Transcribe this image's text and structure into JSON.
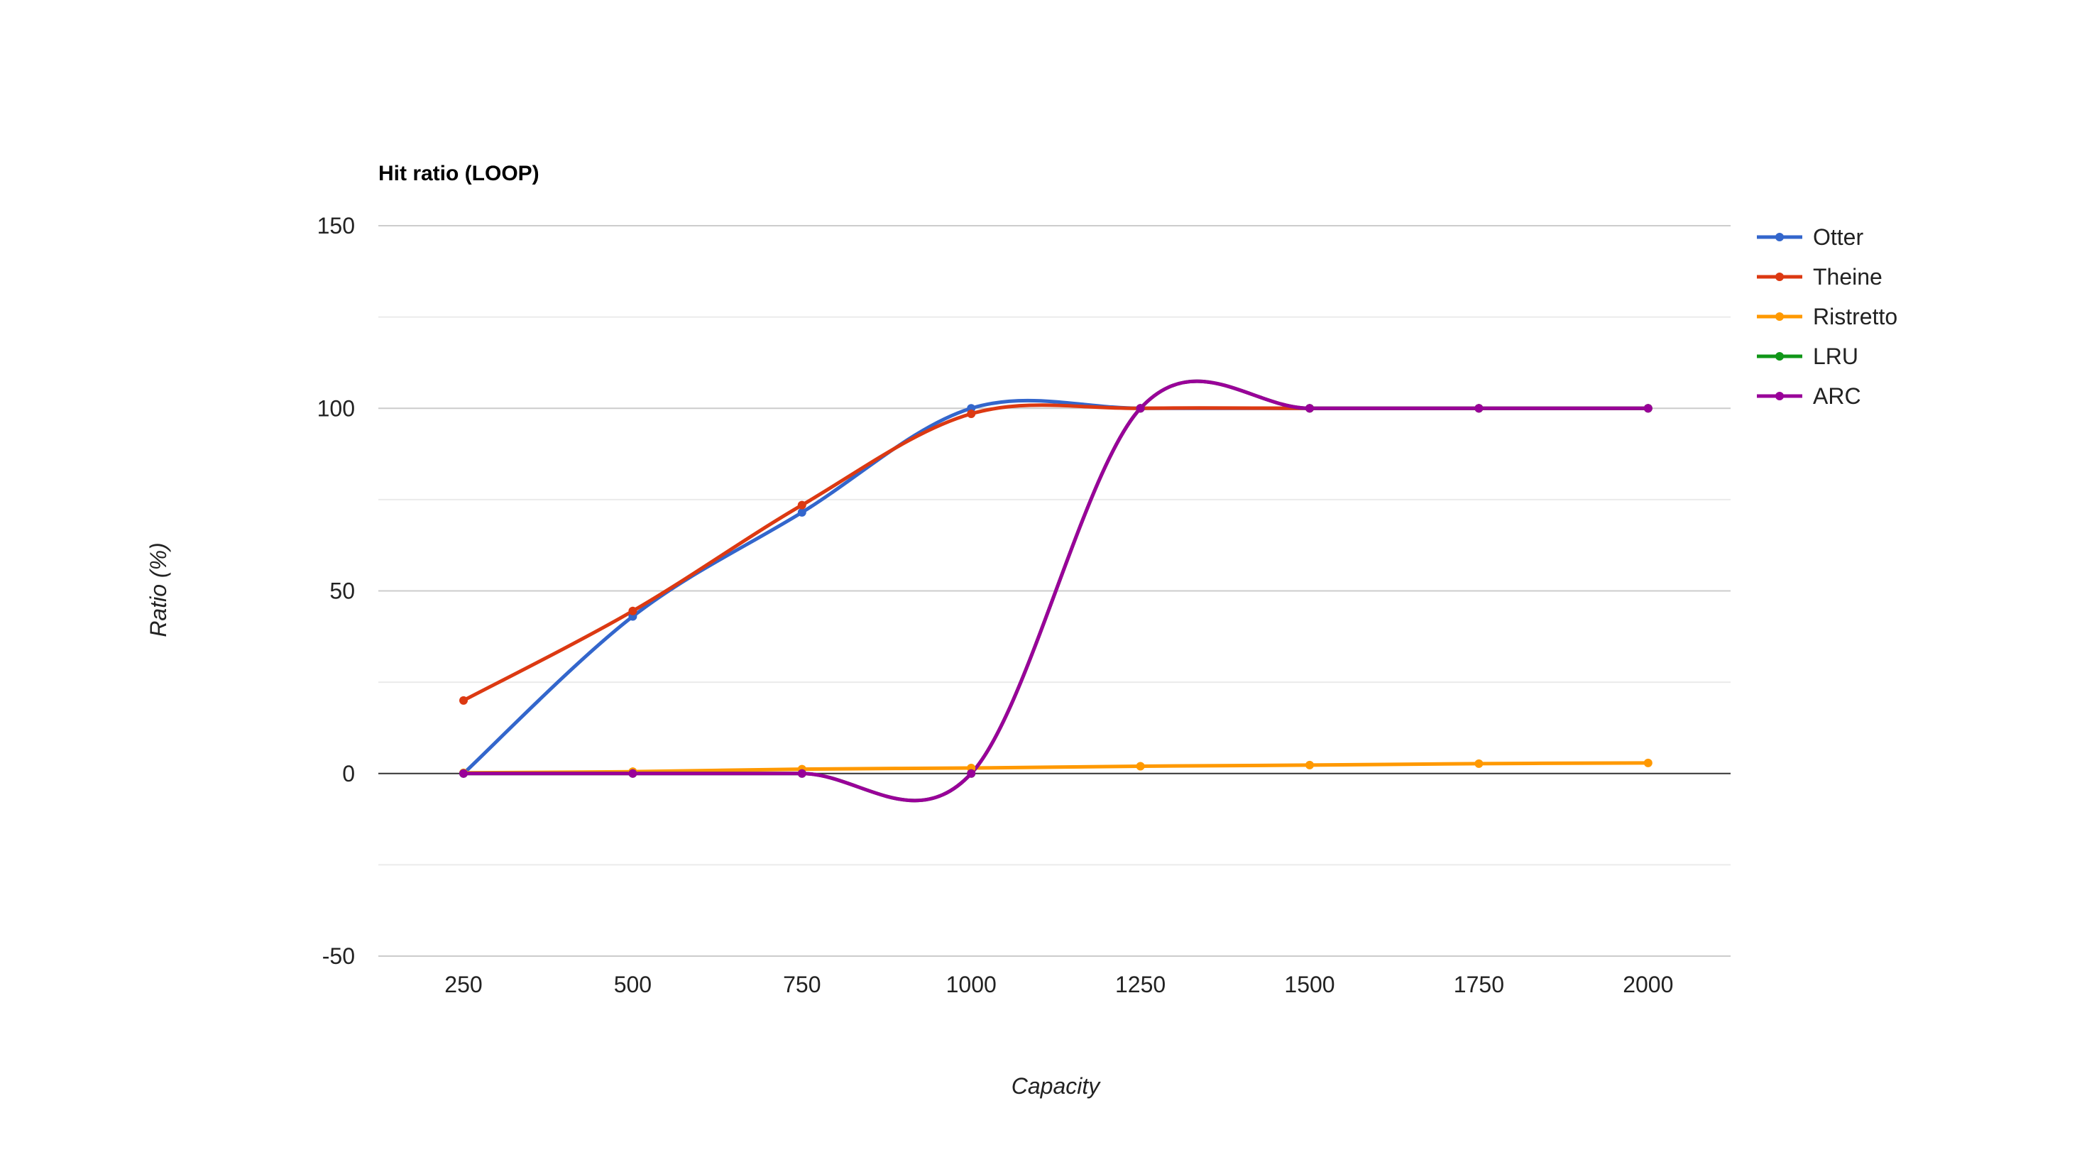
{
  "chart_data": {
    "type": "line",
    "title": "Hit ratio (LOOP)",
    "xlabel": "Capacity",
    "ylabel": "Ratio (%)",
    "x": [
      250,
      500,
      750,
      1000,
      1250,
      1500,
      1750,
      2000
    ],
    "x_ticks": [
      "250",
      "500",
      "750",
      "1000",
      "1250",
      "1500",
      "1750",
      "2000"
    ],
    "ylim": [
      -50,
      150
    ],
    "y_ticks": [
      -50,
      0,
      50,
      100,
      150
    ],
    "y_tick_labels": [
      "-50",
      "0",
      "50",
      "100",
      "150"
    ],
    "grid": true,
    "smooth": true,
    "legend_position": "right",
    "series": [
      {
        "name": "Otter",
        "color": "#3366cc",
        "values": [
          0,
          43,
          71.5,
          100,
          100,
          100,
          100,
          100
        ]
      },
      {
        "name": "Theine",
        "color": "#dc3912",
        "values": [
          20,
          44.5,
          73.5,
          98.5,
          100,
          100,
          100,
          100
        ]
      },
      {
        "name": "Ristretto",
        "color": "#ff9900",
        "values": [
          0.2,
          0.5,
          1.2,
          1.5,
          2,
          2.3,
          2.7,
          2.9
        ]
      },
      {
        "name": "LRU",
        "color": "#109618",
        "values": [
          0,
          0,
          0,
          0,
          100,
          100,
          100,
          100
        ]
      },
      {
        "name": "ARC",
        "color": "#990099",
        "values": [
          0,
          0,
          0,
          0,
          100,
          100,
          100,
          100
        ]
      }
    ]
  }
}
